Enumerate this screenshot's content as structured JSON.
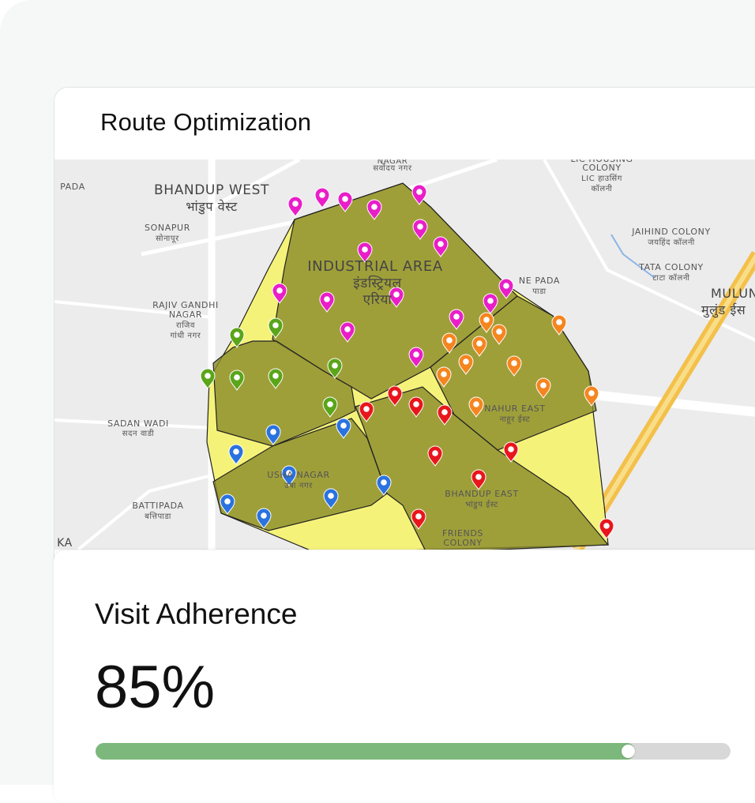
{
  "route_card": {
    "title": "Route Optimization",
    "map_labels": [
      "PADA",
      "BHANDUP WEST",
      "भांडुप वेस्ट",
      "SONAPUR",
      "सोनापूर",
      "RAJIV GANDHI",
      "NAGAR",
      "राजिव",
      "गांधी नगर",
      "SADAN WADI",
      "सदन वाडी",
      "BATTIPADA",
      "बत्तिपाडा",
      "NAGAR",
      "सर्वोदय नगर",
      "INDUSTRIAL AREA",
      "इंडस्ट्रियल",
      "एरिया",
      "LIC HOUSING",
      "COLONY",
      "LIC हाउसिंग",
      "कॉलनी",
      "JAIHIND COLONY",
      "जयहिंद कॉलनी",
      "TATA COLONY",
      "टाटा कॉलनी",
      "MULUND E",
      "मुलुंड ईस",
      "NE PADA",
      "पाडा",
      "NAHUR EAST",
      "नाहूर ईस्ट",
      "USHA NAGAR",
      "उषा नगर",
      "BHANDUP EAST",
      "भांडुप ईस्ट",
      "FRIENDS",
      "COLONY",
      "KA"
    ]
  },
  "adherence_card": {
    "title": "Visit Adherence",
    "adherence": {
      "value": 85,
      "label": "85%"
    },
    "max": 100
  }
}
